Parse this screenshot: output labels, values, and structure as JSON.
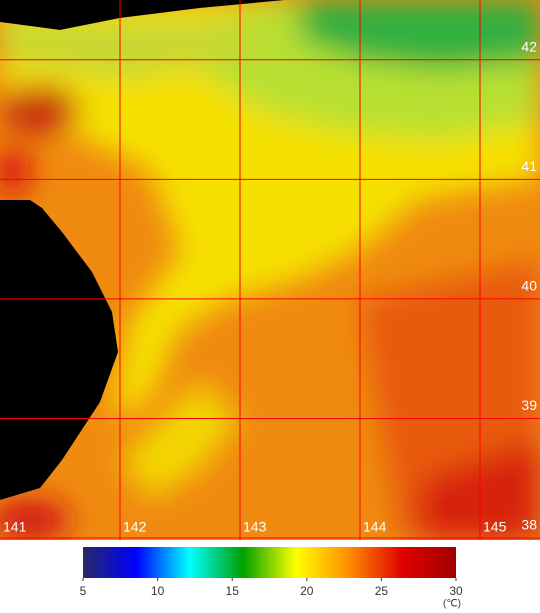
{
  "map": {
    "grid": {
      "color": "#ff0000",
      "longitudes": [
        141,
        142,
        143,
        144,
        145
      ],
      "latitudes": [
        42,
        41,
        40,
        39,
        38
      ],
      "lon_range": [
        141,
        145.5
      ],
      "lat_range": [
        42.5,
        38
      ]
    },
    "colorbar": {
      "range": [
        5,
        30
      ],
      "ticks": [
        5,
        10,
        15,
        20,
        25,
        30
      ],
      "unit": "(℃)",
      "colors": [
        "#262a66",
        "#0000ff",
        "#00ffff",
        "#00a000",
        "#ffff00",
        "#ff8c00",
        "#e00000",
        "#a00000"
      ]
    }
  }
}
